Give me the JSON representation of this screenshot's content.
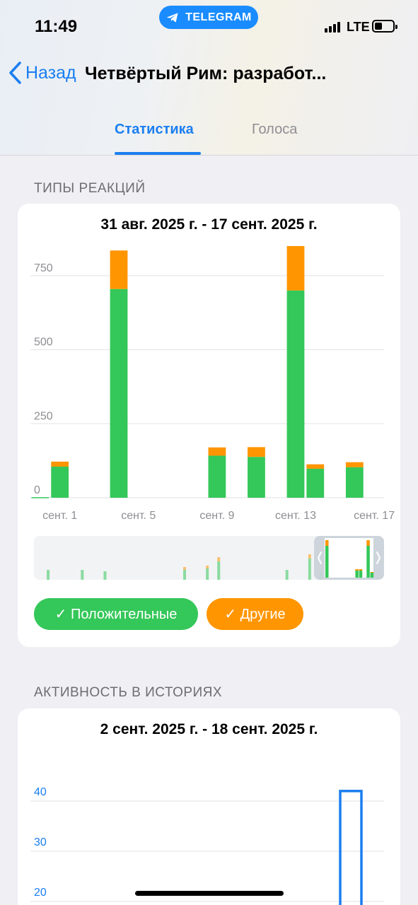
{
  "status_bar": {
    "time": "11:49",
    "network": "LTE",
    "app_pill": "TELEGRAM"
  },
  "nav": {
    "back_label": "Назад",
    "title": "Четвёртый Рим: разработ..."
  },
  "tabs": [
    {
      "label": "Статистика",
      "active": true
    },
    {
      "label": "Голоса",
      "active": false
    }
  ],
  "colors": {
    "accent": "#1a7ef0",
    "positive": "#34c759",
    "other": "#ff9500"
  },
  "reactions": {
    "section_label": "ТИПЫ РЕАКЦИЙ",
    "range": "31 авг. 2025 г. - 17 сент. 2025 г.",
    "legend": {
      "positive": "✓ Положительные",
      "other": "✓ Другие"
    },
    "x_tick_labels": [
      "сент. 1",
      "сент. 5",
      "сент. 9",
      "сент. 13",
      "сент. 17"
    ]
  },
  "stories": {
    "section_label": "АКТИВНОСТЬ В ИСТОРИЯХ",
    "range": "2 сент. 2025 г. - 18 сент. 2025 г."
  },
  "chart_data": [
    {
      "type": "bar",
      "stacked": true,
      "x": [
        "31 авг.",
        "сент. 1",
        "сент. 2",
        "сент. 3",
        "сент. 4",
        "сент. 5",
        "сент. 6",
        "сент. 7",
        "сент. 8",
        "сент. 9",
        "сент. 10",
        "сент. 11",
        "сент. 12",
        "сент. 13",
        "сент. 14",
        "сент. 15",
        "сент. 16",
        "сент. 17"
      ],
      "series": [
        {
          "name": "Положительные",
          "color": "#34c759",
          "values": [
            2,
            105,
            0,
            0,
            705,
            0,
            0,
            0,
            0,
            142,
            0,
            138,
            0,
            700,
            98,
            0,
            103,
            0
          ]
        },
        {
          "name": "Другие",
          "color": "#ff9500",
          "values": [
            0,
            17,
            0,
            0,
            130,
            0,
            0,
            0,
            0,
            28,
            0,
            33,
            0,
            150,
            15,
            0,
            17,
            0
          ]
        }
      ],
      "y_ticks": [
        0,
        250,
        500,
        750
      ],
      "x_tick_labels": [
        "сент. 1",
        "сент. 5",
        "сент. 9",
        "сент. 13",
        "сент. 17"
      ],
      "ylim": [
        0,
        850
      ],
      "grid": true,
      "legend": "bottom"
    },
    {
      "type": "bar",
      "x": [
        "сент. 17"
      ],
      "series": [
        {
          "color": "#1a7ef0",
          "values": [
            42
          ]
        }
      ],
      "y_ticks": [
        20,
        30,
        40
      ],
      "ylim": [
        0,
        45
      ],
      "grid": true
    }
  ]
}
